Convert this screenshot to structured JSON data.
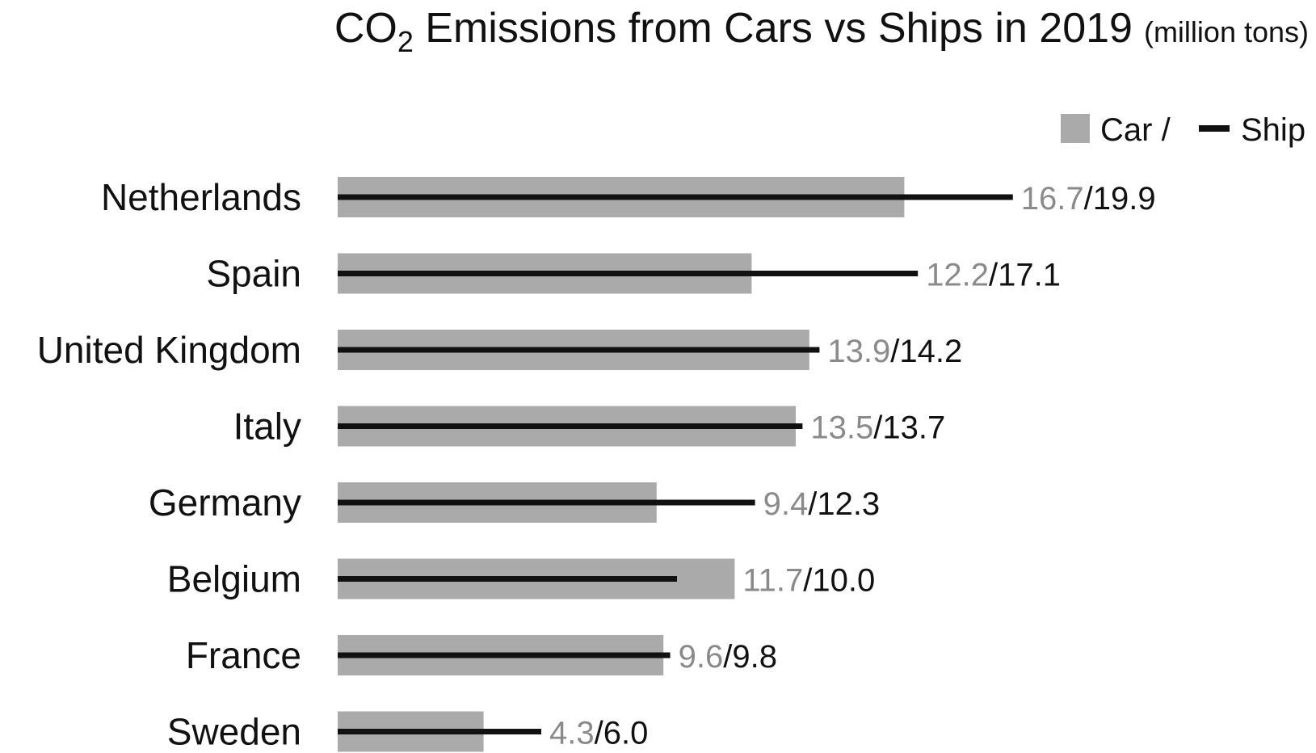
{
  "chart_data": {
    "type": "bar",
    "title_main": "CO",
    "title_subscript": "2",
    "title_rest": " Emissions from Cars vs Ships in 2019",
    "title_unit": "(million tons)",
    "legend": {
      "car_label": "Car /",
      "ship_label": "Ship",
      "placement": "top-right"
    },
    "colors": {
      "car_bar": "#aaaaaa",
      "ship_line": "#111111",
      "car_value_text": "#8a8a8a",
      "ship_value_text": "#111111"
    },
    "categories": [
      "Netherlands",
      "Spain",
      "United Kingdom",
      "Italy",
      "Germany",
      "Belgium",
      "France",
      "Sweden"
    ],
    "series": [
      {
        "name": "Car",
        "values": [
          16.7,
          12.2,
          13.9,
          13.5,
          9.4,
          11.7,
          9.6,
          4.3
        ]
      },
      {
        "name": "Ship",
        "values": [
          19.9,
          17.1,
          14.2,
          13.7,
          12.3,
          10.0,
          9.8,
          6.0
        ]
      }
    ],
    "value_labels": [
      {
        "car": "16.7",
        "ship": "19.9"
      },
      {
        "car": "12.2",
        "ship": "17.1"
      },
      {
        "car": "13.9",
        "ship": "14.2"
      },
      {
        "car": "13.5",
        "ship": "13.7"
      },
      {
        "car": "9.4",
        "ship": "12.3"
      },
      {
        "car": "11.7",
        "ship": "10.0"
      },
      {
        "car": "9.6",
        "ship": "9.8"
      },
      {
        "car": "4.3",
        "ship": "6.0"
      }
    ],
    "xlim": [
      0,
      20
    ],
    "grid": false
  }
}
